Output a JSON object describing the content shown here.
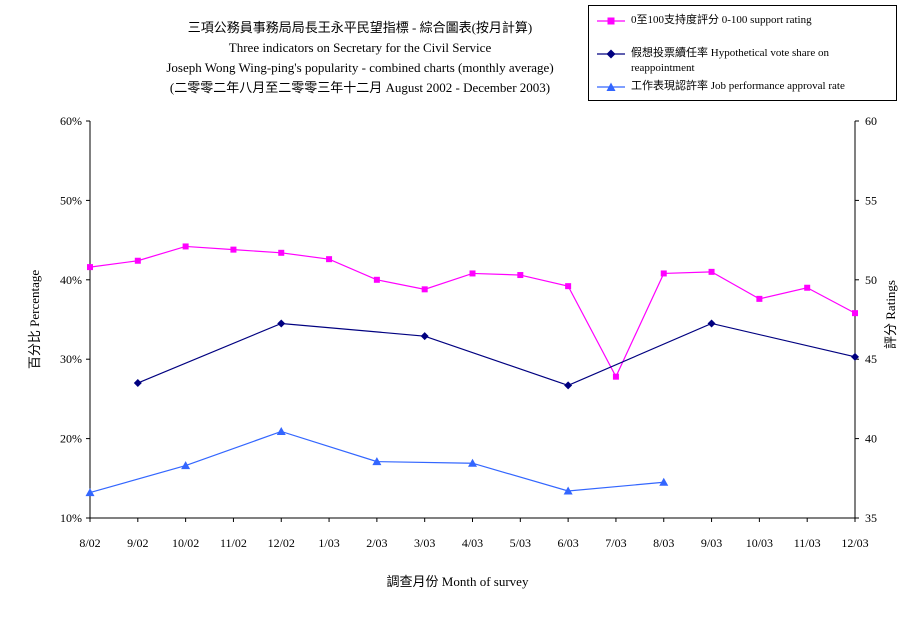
{
  "chart_data": {
    "type": "line",
    "title": [
      "三項公務員事務局局長王永平民望指標 - 綜合圖表(按月計算)",
      "Three indicators on Secretary for the Civil Service",
      "Joseph Wong Wing-ping's popularity - combined charts (monthly average)",
      "(二零零二年八月至二零零三年十二月 August 2002 - December 2003)"
    ],
    "xlabel": "調查月份  Month of survey",
    "ylabel_left": "百分比  Percentage",
    "ylabel_right": "評分  Ratings",
    "categories": [
      "8/02",
      "9/02",
      "10/02",
      "11/02",
      "12/02",
      "1/03",
      "2/03",
      "3/03",
      "4/03",
      "5/03",
      "6/03",
      "7/03",
      "8/03",
      "9/03",
      "10/03",
      "11/03",
      "12/03"
    ],
    "y_left": {
      "range": [
        10,
        60
      ],
      "ticks": [
        "10%",
        "20%",
        "30%",
        "40%",
        "50%",
        "60%"
      ],
      "tick_values": [
        10,
        20,
        30,
        40,
        50,
        60
      ]
    },
    "y_right": {
      "range": [
        35,
        60
      ],
      "ticks": [
        "35",
        "40",
        "45",
        "50",
        "55",
        "60"
      ],
      "tick_values": [
        35,
        40,
        45,
        50,
        55,
        60
      ]
    },
    "grid": false,
    "legend_position": "top-right",
    "series": [
      {
        "name": "0至100支持度評分 0-100 support rating",
        "axis": "right",
        "color": "#ff00ff",
        "marker": "square",
        "values": [
          50.8,
          51.2,
          52.1,
          51.9,
          51.7,
          51.3,
          50.0,
          49.4,
          50.4,
          50.3,
          49.6,
          43.9,
          50.4,
          50.5,
          48.8,
          49.5,
          47.9
        ]
      },
      {
        "name": "假想投票續任率 Hypothetical vote share on reappointment",
        "axis": "left",
        "color": "#000080",
        "marker": "diamond",
        "values": [
          null,
          27.0,
          null,
          null,
          34.5,
          null,
          null,
          32.9,
          null,
          null,
          26.7,
          null,
          null,
          34.5,
          null,
          null,
          30.3
        ]
      },
      {
        "name": "工作表現認許率 Job performance approval rate",
        "axis": "left",
        "color": "#3366ff",
        "marker": "triangle",
        "values": [
          13.2,
          null,
          16.6,
          null,
          20.9,
          null,
          17.1,
          null,
          16.9,
          null,
          13.4,
          null,
          14.5,
          null,
          null,
          null,
          null
        ]
      }
    ]
  }
}
